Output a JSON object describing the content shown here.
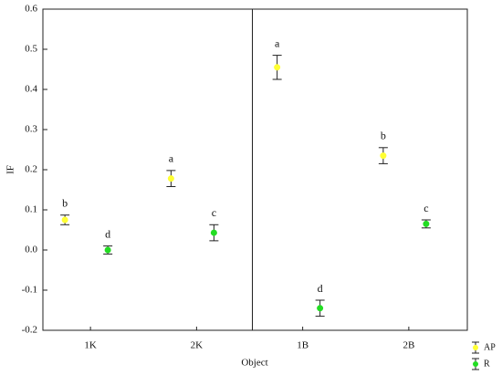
{
  "chart_data": {
    "type": "scatter",
    "x_label": "Object",
    "y_label": "IF",
    "categories": [
      "1K",
      "2K",
      "1B",
      "2B"
    ],
    "series": [
      {
        "name": "AP",
        "color": "#ffff33",
        "values": [
          0.075,
          0.178,
          0.455,
          0.235
        ],
        "errors": [
          0.012,
          0.02,
          0.03,
          0.02
        ],
        "labels": [
          "b",
          "a",
          "a",
          "b"
        ]
      },
      {
        "name": "R",
        "color": "#22dd22",
        "values": [
          0.0,
          0.043,
          -0.145,
          0.065
        ],
        "errors": [
          0.01,
          0.02,
          0.02,
          0.01
        ],
        "labels": [
          "d",
          "c",
          "d",
          "c"
        ]
      }
    ],
    "ylim": [
      -0.2,
      0.6
    ],
    "yticks": [
      -0.2,
      -0.1,
      {
        "value": 0,
        "label": "0.0"
      },
      0.1,
      0.2,
      0.3,
      0.4,
      0.5,
      0.6
    ],
    "grid": false
  }
}
